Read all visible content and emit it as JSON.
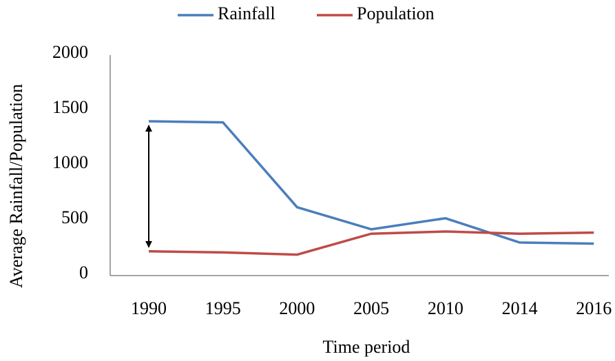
{
  "chart_data": {
    "type": "line",
    "x_label": "Time period",
    "y_label": "Average Rainfall/Population",
    "categories": [
      "1990",
      "1995",
      "2000",
      "2005",
      "2010",
      "2014",
      "2016"
    ],
    "series": [
      {
        "name": "Rainfall",
        "color": "#4a7ebb",
        "values": [
          1400,
          1390,
          620,
          420,
          520,
          300,
          290
        ]
      },
      {
        "name": "Population",
        "color": "#be4b48",
        "values": [
          220,
          210,
          190,
          380,
          400,
          380,
          390
        ]
      }
    ],
    "ylim": [
      0,
      2000
    ],
    "yticks": [
      0,
      500,
      1000,
      1500,
      2000
    ],
    "legend": "top"
  }
}
